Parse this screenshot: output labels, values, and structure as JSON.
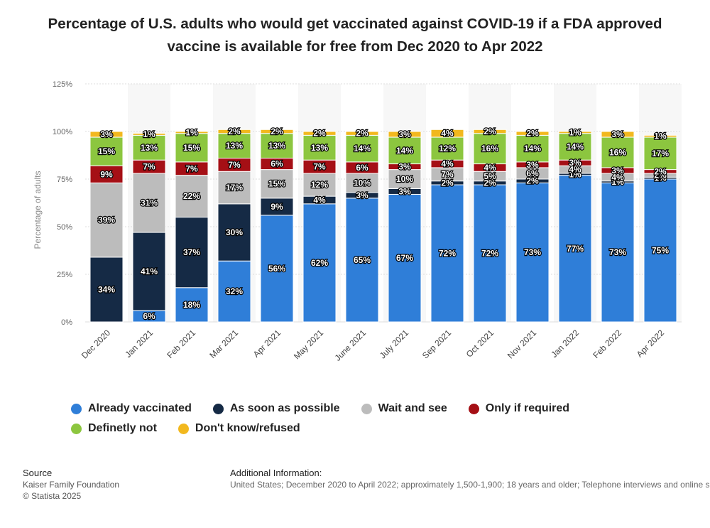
{
  "chart_data": {
    "type": "bar",
    "stacked": true,
    "title": "Percentage of U.S. adults who would get vaccinated against COVID-19 if a FDA approved vaccine is available for free from Dec 2020 to Apr 2022",
    "xlabel": "",
    "ylabel": "Percentage of adults",
    "ylim": [
      0,
      125
    ],
    "yticks": [
      "0%",
      "25%",
      "50%",
      "75%",
      "100%",
      "125%"
    ],
    "ytick_values": [
      0,
      25,
      50,
      75,
      100,
      125
    ],
    "categories": [
      "Dec 2020",
      "Jan 2021",
      "Feb 2021",
      "Mar 2021",
      "Apr 2021",
      "May 2021",
      "June 2021",
      "July 2021",
      "Sep 2021",
      "Oct 2021",
      "Nov 2021",
      "Jan 2022",
      "Feb 2022",
      "Apr 2022"
    ],
    "series": [
      {
        "name": "Already vaccinated",
        "color": "#2f7ed8",
        "values": [
          0,
          6,
          18,
          32,
          56,
          62,
          65,
          67,
          72,
          72,
          73,
          77,
          73,
          75
        ]
      },
      {
        "name": "As soon as possible",
        "color": "#152a45",
        "values": [
          34,
          41,
          37,
          30,
          9,
          4,
          3,
          3,
          2,
          2,
          2,
          1,
          1,
          1
        ]
      },
      {
        "name": "Wait and see",
        "color": "#bcbcbc",
        "values": [
          39,
          31,
          22,
          17,
          15,
          12,
          10,
          10,
          7,
          5,
          6,
          4,
          4,
          2
        ]
      },
      {
        "name": "Only if required",
        "color": "#a50f15",
        "values": [
          9,
          7,
          7,
          7,
          6,
          7,
          6,
          3,
          4,
          4,
          3,
          3,
          3,
          2
        ]
      },
      {
        "name": "Definetly not",
        "color": "#8cc63f",
        "values": [
          15,
          13,
          15,
          13,
          13,
          13,
          14,
          14,
          12,
          16,
          14,
          14,
          16,
          17
        ]
      },
      {
        "name": "Don't know/refused",
        "color": "#f2b81e",
        "values": [
          3,
          1,
          1,
          2,
          2,
          2,
          2,
          3,
          4,
          2,
          2,
          1,
          3,
          1
        ]
      }
    ],
    "legend_position": "bottom-left",
    "grid": true
  },
  "footer": {
    "source_heading": "Source",
    "source_name": "Kaiser Family Foundation",
    "copyright": "© Statista 2025",
    "info_heading": "Additional Information:",
    "info_text": "United States; December 2020 to April 2022; approximately 1,500-1,900; 18 years and older; Telephone interviews and online survey"
  }
}
